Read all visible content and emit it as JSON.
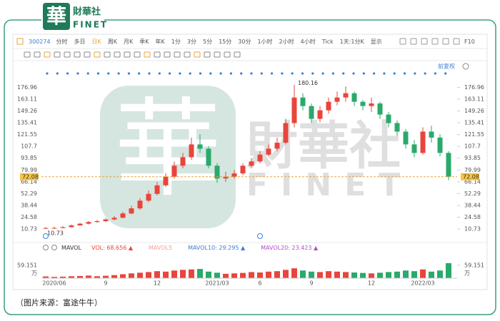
{
  "header": {
    "logo_char": "華",
    "brand_cn": "財華社",
    "brand_en": "FINET"
  },
  "toolbar": {
    "code": "300274",
    "items": [
      "分时",
      "多日",
      "日K",
      "周K",
      "月K",
      "季K",
      "年K",
      "1分",
      "3分",
      "5分",
      "15分",
      "30分",
      "1小时",
      "2小时",
      "4小时",
      "Tick",
      "1天:1分K",
      "显示"
    ],
    "right": "F10"
  },
  "watermark": {
    "cn": "財華社",
    "en": "FINET"
  },
  "chart_data": [
    {
      "type": "candlestick",
      "adjust": "前复权",
      "categories": [
        null,
        "2020/06",
        null,
        null,
        null,
        null,
        null,
        "9",
        null,
        null,
        null,
        null,
        null,
        "12",
        null,
        null,
        null,
        null,
        null,
        null,
        "2021/03",
        null,
        null,
        null,
        null,
        "6",
        null,
        null,
        null,
        null,
        null,
        "9",
        null,
        null,
        null,
        null,
        null,
        null,
        "12",
        null,
        null,
        null,
        null,
        null,
        "2022/03",
        null,
        null,
        null
      ],
      "open": [
        11.5,
        12,
        12,
        13,
        15,
        17,
        19,
        20,
        22,
        24,
        29,
        35,
        44,
        52,
        62,
        72,
        85,
        95,
        110,
        105,
        85,
        70,
        72,
        76,
        85,
        90,
        98,
        105,
        112,
        135,
        165,
        155,
        140,
        150,
        160,
        165,
        170,
        160,
        155,
        158,
        145,
        135,
        125,
        110,
        100,
        125,
        118,
        100
      ],
      "high": [
        13,
        13.5,
        14,
        16,
        18,
        20,
        21.5,
        23.5,
        26,
        31,
        38,
        47,
        56,
        66,
        76,
        90,
        100,
        118,
        122,
        108,
        88,
        78,
        80,
        88,
        94,
        102,
        110,
        118,
        140,
        180.16,
        170,
        158,
        155,
        165,
        172,
        178,
        172,
        162,
        165,
        160,
        148,
        138,
        128,
        115,
        130,
        132,
        122,
        102
      ],
      "low": [
        10.73,
        11,
        11.5,
        12.5,
        14.5,
        16,
        18,
        19,
        21,
        23,
        28,
        33,
        42,
        50,
        60,
        70,
        82,
        92,
        100,
        82,
        65,
        66,
        70,
        74,
        83,
        88,
        96,
        102,
        110,
        130,
        150,
        135,
        136,
        146,
        156,
        160,
        155,
        150,
        148,
        140,
        130,
        120,
        105,
        95,
        98,
        112,
        96,
        68
      ],
      "close": [
        12,
        12,
        13,
        15,
        17,
        19,
        20,
        22,
        24,
        29,
        35,
        44,
        52,
        62,
        72,
        85,
        95,
        110,
        105,
        85,
        70,
        72,
        76,
        85,
        90,
        98,
        105,
        112,
        135,
        165,
        155,
        140,
        150,
        160,
        165,
        170,
        160,
        155,
        158,
        145,
        135,
        125,
        110,
        100,
        125,
        118,
        100,
        72.08
      ],
      "up_color": "#e8453c",
      "down_color": "#2aa96b",
      "ylim": [
        -0.9,
        195.7
      ],
      "yticks": [
        176.96,
        163.11,
        149.26,
        135.41,
        121.55,
        107.7,
        93.85,
        79.99,
        66.14,
        52.29,
        38.44,
        24.58,
        10.73
      ],
      "grid": false
    },
    {
      "type": "bar",
      "title": "MAVOL",
      "indicators": [
        {
          "text": "VOL: 68.656 ▲",
          "color": "#e8453c"
        },
        {
          "text": "MAVOL5",
          "color": "#f0a0a0"
        },
        {
          "text": "MAVOL10: 29.295 ▲",
          "color": "#3b7fd6"
        },
        {
          "text": "MAVOL20: 23.423 ▲",
          "color": "#b04fc8"
        }
      ],
      "values": [
        8,
        6,
        7,
        9,
        10,
        12,
        9,
        11,
        14,
        18,
        22,
        25,
        28,
        32,
        30,
        35,
        38,
        40,
        42,
        30,
        25,
        20,
        22,
        24,
        28,
        26,
        30,
        32,
        38,
        45,
        35,
        30,
        28,
        32,
        30,
        28,
        26,
        24,
        22,
        25,
        28,
        30,
        35,
        32,
        40,
        30,
        35,
        68.656
      ],
      "ylim": [
        0,
        104
      ],
      "yticks": [
        59.151
      ],
      "unit": "万"
    }
  ],
  "caption": "（图片来源：富途牛牛）"
}
